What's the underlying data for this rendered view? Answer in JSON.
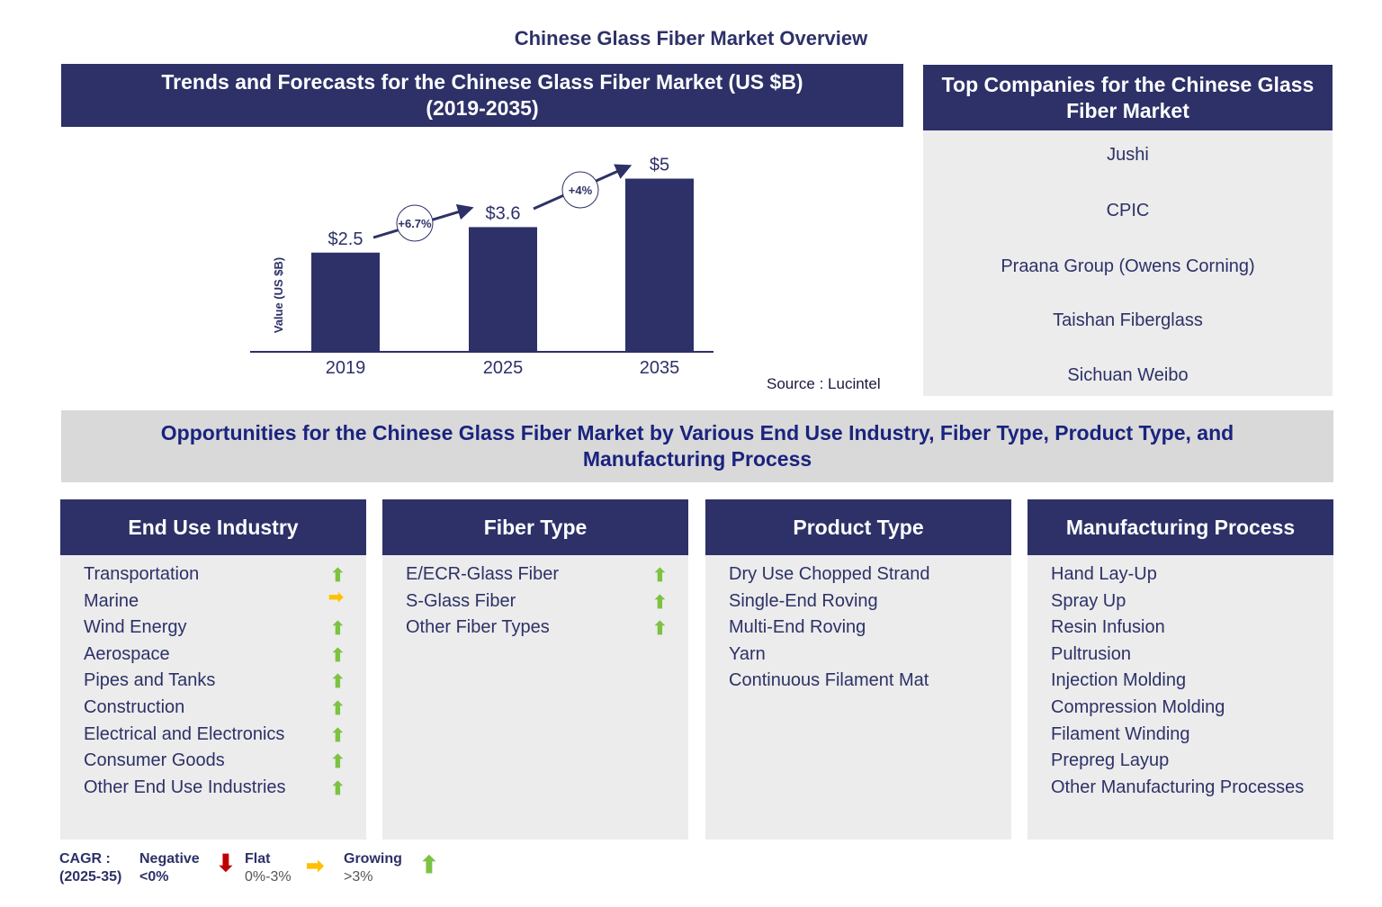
{
  "title": "Chinese Glass Fiber Market Overview",
  "trend_header": [
    "Trends and Forecasts for the Chinese Glass Fiber Market (US $B)",
    "(2019-2035)"
  ],
  "companies_header": [
    "Top Companies for the Chinese Glass",
    "Fiber Market"
  ],
  "companies": [
    "Jushi",
    "CPIC",
    "Praana Group (Owens Corning)",
    "Taishan Fiberglass",
    "Sichuan Weibo"
  ],
  "source": "Source : Lucintel",
  "chart_data": {
    "type": "bar",
    "categories": [
      "2019",
      "2025",
      "2035"
    ],
    "values": [
      2.5,
      3.6,
      5
    ],
    "data_labels": [
      "$2.5",
      "$3.6",
      "$5"
    ],
    "ylabel": "Value (US $B)",
    "cagr": [
      {
        "from": "2019",
        "to": "2025",
        "label": "+6.7%"
      },
      {
        "from": "2025",
        "to": "2035",
        "label": "+4%"
      }
    ],
    "bar_color": "#2d3168"
  },
  "opportunities": "Opportunities for the Chinese Glass Fiber Market by Various End Use Industry, Fiber Type, Product Type, and Manufacturing Process",
  "columns": [
    {
      "title": "End Use Industry",
      "items": [
        {
          "label": "Transportation",
          "trend": "growing"
        },
        {
          "label": "Marine",
          "trend": "flat"
        },
        {
          "label": "Wind Energy",
          "trend": "growing"
        },
        {
          "label": "Aerospace",
          "trend": "growing"
        },
        {
          "label": "Pipes and Tanks",
          "trend": "growing"
        },
        {
          "label": "Construction",
          "trend": "growing"
        },
        {
          "label": "Electrical and Electronics",
          "trend": "growing"
        },
        {
          "label": "Consumer Goods",
          "trend": "growing"
        },
        {
          "label": "Other End Use Industries",
          "trend": "growing"
        }
      ]
    },
    {
      "title": "Fiber Type",
      "items": [
        {
          "label": "E/ECR-Glass Fiber",
          "trend": "growing"
        },
        {
          "label": "S-Glass Fiber",
          "trend": "growing"
        },
        {
          "label": "Other Fiber Types",
          "trend": "growing"
        }
      ]
    },
    {
      "title": "Product Type",
      "items": [
        {
          "label": "Dry Use Chopped Strand"
        },
        {
          "label": "Single-End Roving"
        },
        {
          "label": "Multi-End Roving"
        },
        {
          "label": "Yarn"
        },
        {
          "label": "Continuous Filament Mat"
        }
      ]
    },
    {
      "title": "Manufacturing Process",
      "items": [
        {
          "label": "Hand Lay-Up"
        },
        {
          "label": "Spray Up"
        },
        {
          "label": "Resin Infusion"
        },
        {
          "label": "Pultrusion"
        },
        {
          "label": "Injection Molding"
        },
        {
          "label": "Compression Molding"
        },
        {
          "label": "Filament Winding"
        },
        {
          "label": "Prepreg Layup"
        },
        {
          "label": "Other Manufacturing Processes"
        }
      ]
    }
  ],
  "legend": {
    "cagr": "CAGR  :",
    "period": "(2025-35)",
    "negative": "Negative",
    "negative_range": "<0%",
    "flat": "Flat",
    "flat_range": "0%-3%",
    "growing": "Growing",
    "growing_range": ">3%"
  },
  "colors": {
    "navy": "#2d3168",
    "growing": "#7dc242",
    "flat": "#ffc000",
    "negative": "#c00000"
  }
}
